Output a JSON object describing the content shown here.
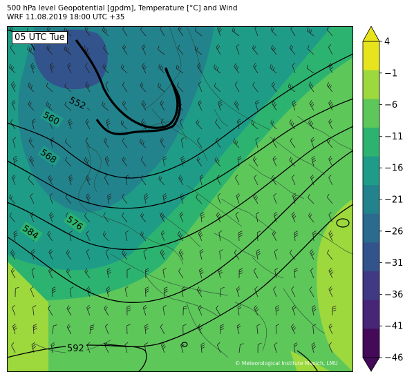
{
  "header": {
    "title_line1": "500 hPa level Geopotential [gpdm], Temperature [°C] and Wind",
    "title_line2": "WRF 11.08.2019 18:00 UTC +35"
  },
  "map": {
    "time_label": "05 UTC Tue",
    "credit": "© Meteorological Institute Munich, LMU",
    "contour_labels": [
      "552",
      "560",
      "568",
      "576",
      "584",
      "592"
    ]
  },
  "colorbar": {
    "tick_labels": [
      "4",
      "−1",
      "−6",
      "−11",
      "−16",
      "−21",
      "−26",
      "−31",
      "−36",
      "−41",
      "−46"
    ],
    "colors": [
      "#e7e41e",
      "#9dd83d",
      "#5ec75a",
      "#2db370",
      "#1f9c87",
      "#22838d",
      "#2a6b8f",
      "#33538c",
      "#403a84",
      "#472577",
      "#440a59"
    ]
  }
}
